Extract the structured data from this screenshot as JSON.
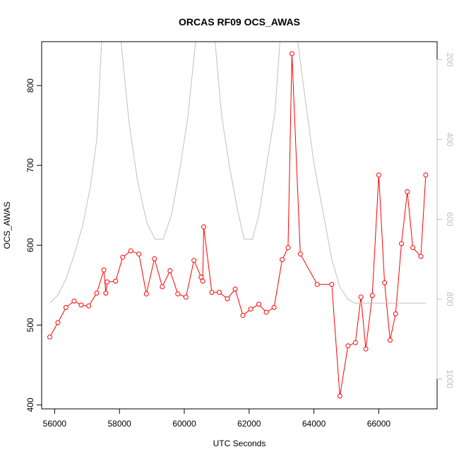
{
  "chart_data": {
    "type": "line",
    "title": "ORCAS RF09 OCS_AWAS",
    "xlabel": "UTC Seconds",
    "ylabel": "OCS_AWAS",
    "xlim": [
      55600,
      67800
    ],
    "ylim": [
      395,
      855
    ],
    "x_ticks": [
      56000,
      58000,
      60000,
      62000,
      64000,
      66000
    ],
    "y_ticks": [
      400,
      500,
      600,
      700,
      800
    ],
    "y2lim": [
      1075,
      155
    ],
    "y2_ticks": [
      200,
      400,
      600,
      800,
      1000
    ],
    "grid": false,
    "series": [
      {
        "role": "OCS_AWAS",
        "color": "#ff0000",
        "style": "line+open-circles",
        "axis": "left",
        "x": [
          55850,
          56100,
          56350,
          56600,
          56820,
          57050,
          57300,
          57520,
          57580,
          57620,
          57880,
          58100,
          58350,
          58600,
          58830,
          59080,
          59320,
          59560,
          59800,
          60050,
          60300,
          60520,
          60570,
          60600,
          60850,
          61080,
          61330,
          61570,
          61810,
          62050,
          62300,
          62530,
          62770,
          63020,
          63200,
          63320,
          63580,
          64100,
          64550,
          64800,
          65050,
          65280,
          65450,
          65600,
          65800,
          66000,
          66180,
          66350,
          66520,
          66700,
          66880,
          67050,
          67300,
          67450
        ],
        "values": [
          485,
          503,
          522,
          530,
          525,
          524,
          540,
          569,
          540,
          554,
          555,
          585,
          593,
          589,
          539,
          583,
          548,
          568,
          539,
          535,
          581,
          560,
          555,
          623,
          541,
          541,
          533,
          545,
          512,
          520,
          526,
          516,
          522,
          582,
          597,
          840,
          589,
          551,
          551,
          411,
          474,
          478,
          535,
          470,
          537,
          688,
          553,
          481,
          514,
          602,
          667,
          597,
          586,
          688
        ]
      },
      {
        "role": "altitude-trace",
        "color": "#c0c0c0",
        "style": "line",
        "axis": "right",
        "x": [
          55850,
          56100,
          56350,
          56600,
          56850,
          57100,
          57300,
          57450,
          58050,
          58300,
          58550,
          58850,
          59100,
          59350,
          59600,
          59850,
          60100,
          60350,
          60950,
          61150,
          61400,
          61650,
          61850,
          62100,
          62300,
          62550,
          62800,
          62950,
          63500,
          63750,
          64000,
          64300,
          64550,
          64800,
          65050,
          65250,
          67450
        ],
        "values": [
          810,
          790,
          750,
          690,
          620,
          520,
          400,
          155,
          155,
          360,
          500,
          610,
          650,
          650,
          590,
          480,
          350,
          155,
          155,
          340,
          470,
          580,
          650,
          650,
          590,
          460,
          330,
          155,
          155,
          310,
          460,
          590,
          700,
          770,
          800,
          810,
          810
        ]
      }
    ]
  }
}
